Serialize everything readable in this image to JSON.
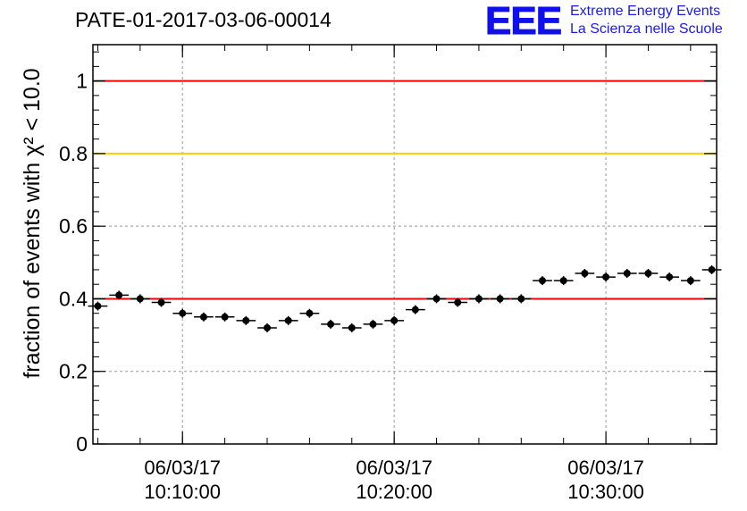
{
  "header": {
    "title": "PATE-01-2017-03-06-00014",
    "logo": {
      "mark": "EEE",
      "line1": "Extreme Energy Events",
      "line2": "La Scienza nelle Scuole",
      "color": "#1010ee"
    }
  },
  "chart_data": {
    "type": "scatter",
    "title": "PATE-01-2017-03-06-00014",
    "ylabel": "fraction of events with χ² < 10.0",
    "xlabel": "",
    "ylim": [
      0,
      1.1
    ],
    "xlim": [
      "2017-03-06 10:06:00",
      "2017-03-06 10:35:00"
    ],
    "y_ticks": [
      0,
      0.2,
      0.4,
      0.6,
      0.8,
      1
    ],
    "y_tick_labels": [
      "0",
      "0.2",
      "0.4",
      "0.6",
      "0.8",
      "1"
    ],
    "x_ticks": [
      "2017-03-06 10:10:00",
      "2017-03-06 10:20:00",
      "2017-03-06 10:30:00"
    ],
    "x_tick_labels": [
      {
        "date": "06/03/17",
        "time": "10:10:00"
      },
      {
        "date": "06/03/17",
        "time": "10:20:00"
      },
      {
        "date": "06/03/17",
        "time": "10:30:00"
      }
    ],
    "grid": true,
    "reference_lines": [
      {
        "y": 1.0,
        "color": "#ff0000"
      },
      {
        "y": 0.8,
        "color": "#ffcc00"
      },
      {
        "y": 0.4,
        "color": "#ff0000"
      }
    ],
    "series": [
      {
        "color": "#000000",
        "x": [
          "10:06:00",
          "10:07:00",
          "10:08:00",
          "10:09:00",
          "10:10:00",
          "10:11:00",
          "10:12:00",
          "10:13:00",
          "10:14:00",
          "10:15:00",
          "10:16:00",
          "10:17:00",
          "10:18:00",
          "10:19:00",
          "10:20:00",
          "10:21:00",
          "10:22:00",
          "10:23:00",
          "10:24:00",
          "10:25:00",
          "10:26:00",
          "10:27:00",
          "10:28:00",
          "10:29:00",
          "10:30:00",
          "10:31:00",
          "10:32:00",
          "10:33:00",
          "10:34:00",
          "10:35:00"
        ],
        "y": [
          0.38,
          0.41,
          0.4,
          0.39,
          0.36,
          0.35,
          0.35,
          0.34,
          0.32,
          0.34,
          0.36,
          0.33,
          0.32,
          0.33,
          0.34,
          0.37,
          0.4,
          0.39,
          0.4,
          0.4,
          0.4,
          0.45,
          0.45,
          0.47,
          0.46,
          0.47,
          0.47,
          0.46,
          0.45,
          0.48
        ]
      }
    ]
  }
}
